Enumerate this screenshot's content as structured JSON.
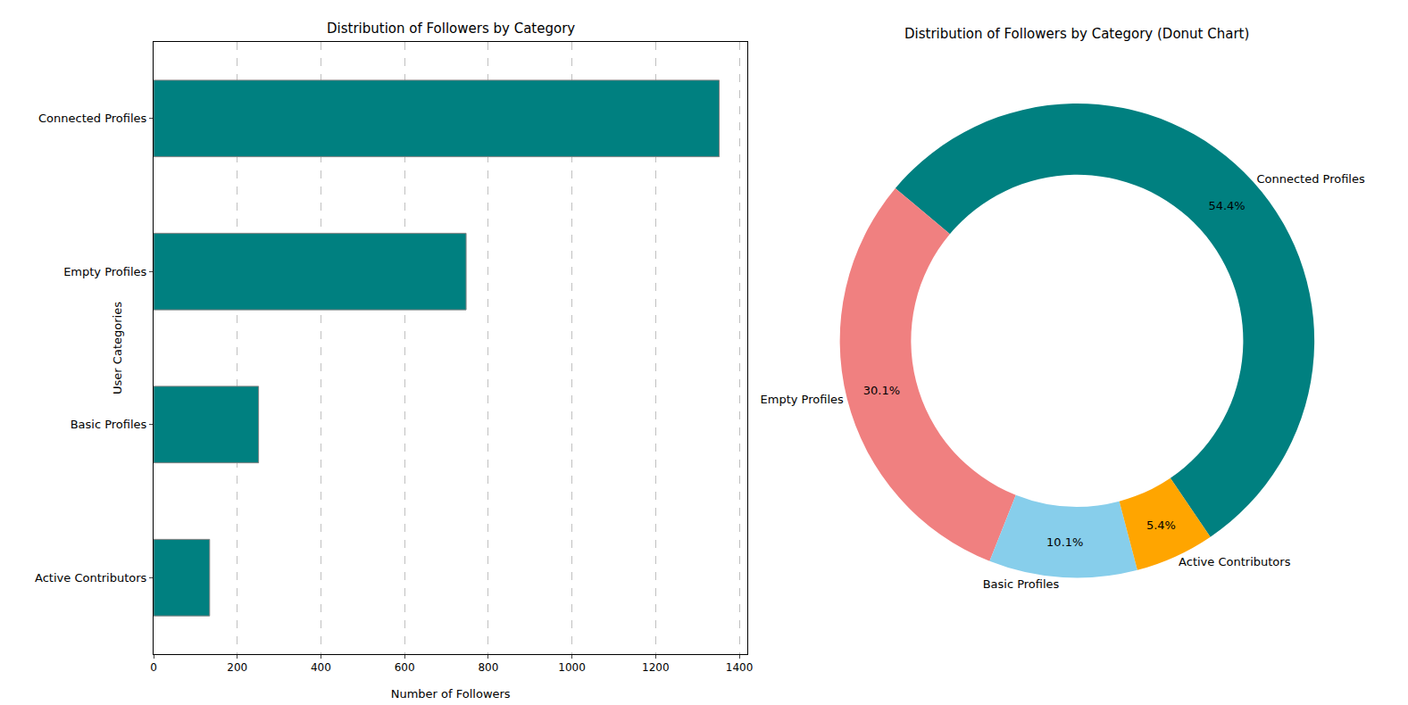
{
  "chart_data": [
    {
      "type": "bar",
      "title": "Distribution of Followers by Category",
      "orientation": "horizontal",
      "categories": [
        "Connected Profiles",
        "Empty Profiles",
        "Basic Profiles",
        "Active Contributors"
      ],
      "values": [
        1352,
        747,
        251,
        134
      ],
      "color": "#008080",
      "x_label": "Number of Followers",
      "y_label": "User Categories",
      "xlim": [
        0,
        1420
      ],
      "xticks": [
        0,
        200,
        400,
        600,
        800,
        1000,
        1200,
        1400
      ],
      "grid": true
    },
    {
      "type": "pie",
      "title": "Distribution of Followers by Category (Donut Chart)",
      "categories": [
        "Connected Profiles",
        "Empty Profiles",
        "Basic Profiles",
        "Active Contributors"
      ],
      "values": [
        54.4,
        30.1,
        10.1,
        5.4
      ],
      "value_labels": [
        "54.4%",
        "30.1%",
        "10.1%",
        "5.4%"
      ],
      "colors": [
        "#008080",
        "#F08080",
        "#87CEEB",
        "#FFA500"
      ],
      "data_labels": true
    }
  ]
}
